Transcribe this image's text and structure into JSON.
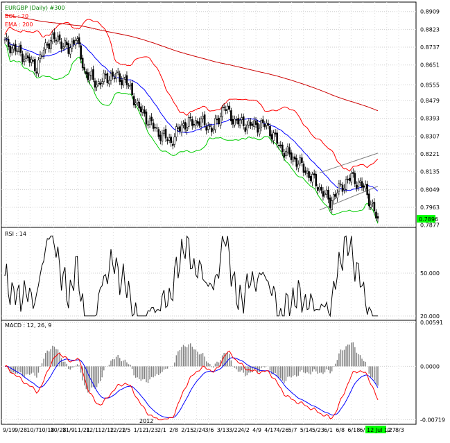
{
  "chart_data": [
    {
      "type": "candlestick",
      "panel": "price",
      "symbol": "EURGBP (Daily) #300",
      "indicators": [
        {
          "label": "BOL : 20",
          "color": "#ff0000"
        },
        {
          "label": "EMA : 200",
          "color": "#ff0000"
        }
      ],
      "y_ticks": [
        "0.8909",
        "0.8823",
        "0.8737",
        "0.8651",
        "0.8555",
        "0.8479",
        "0.8393",
        "0.8307",
        "0.8221",
        "0.8135",
        "0.8049",
        "0.7963",
        "0.7877"
      ],
      "ylim": [
        0.7866,
        0.8955
      ],
      "last_price": "0.7896",
      "colors": {
        "up": "#ffffff",
        "down": "#000000",
        "bollinger": "#ff0000",
        "middle": "#0000ff",
        "lower": "#00cc00",
        "ema": "#cc0000",
        "trendline": "#808080",
        "last_price_bg": "#00ff00"
      }
    },
    {
      "type": "line",
      "panel": "rsi",
      "label": "RSI : 14",
      "y_ticks": [
        "50.000",
        "20.000"
      ],
      "ylim": [
        17,
        82
      ],
      "color": "#000000"
    },
    {
      "type": "histogram+line",
      "panel": "macd",
      "label": "MACD : 12, 26, 9",
      "y_ticks": [
        "0.00591",
        "0.0000",
        "-0.00719"
      ],
      "ylim": [
        -0.0078,
        0.0062
      ],
      "colors": {
        "macd": "#ff0000",
        "signal": "#0000ff",
        "histogram": "#808080"
      }
    }
  ],
  "x_axis": {
    "labels": [
      "9/19",
      "9/28",
      "10/7",
      "10/18",
      "10/28",
      "11/9",
      "11/21",
      "12/1",
      "12/12",
      "12/22",
      "1/5",
      "1/12",
      "1/23",
      "2/1",
      "2/8",
      "2/15",
      "2/24",
      "3/6",
      "3/13",
      "3/22",
      "4/2",
      "4/9",
      "4/17",
      "4/26",
      "5/7",
      "5/14",
      "5/23",
      "6/1",
      "6/8",
      "6/18",
      "6/27",
      "7/20",
      "7/27",
      "8/3"
    ],
    "year_label": "2012",
    "current_label": "12 Jul 12"
  }
}
